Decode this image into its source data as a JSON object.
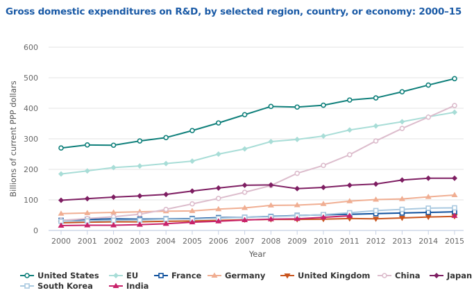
{
  "chart_data": {
    "type": "line",
    "title": "Gross domestic expenditures on R&D, by selected region, country, or economy: 2000–15",
    "xlabel": "Year",
    "ylabel": "Billions of current PPP dollars",
    "ylim": [
      0,
      600
    ],
    "yticks": [
      "0",
      "100",
      "200",
      "300",
      "400",
      "500",
      "600"
    ],
    "ytick_values": [
      0,
      100,
      200,
      300,
      400,
      500,
      600
    ],
    "grid": true,
    "legend_position": "bottom",
    "x": [
      "2000",
      "2001",
      "2002",
      "2003",
      "2004",
      "2005",
      "2006",
      "2007",
      "2008",
      "2009",
      "2010",
      "2011",
      "2012",
      "2013",
      "2014",
      "2015"
    ],
    "series": [
      {
        "name": "United States",
        "color": "#0e7f7a",
        "marker": "circle-open",
        "values": [
          270,
          280,
          279,
          293,
          304,
          327,
          352,
          379,
          406,
          404,
          410,
          427,
          434,
          454,
          476,
          497
        ]
      },
      {
        "name": "EU",
        "color": "#a8ddd7",
        "marker": "diamond",
        "values": [
          185,
          195,
          206,
          211,
          219,
          227,
          250,
          267,
          291,
          298,
          309,
          329,
          342,
          356,
          372,
          387
        ]
      },
      {
        "name": "France",
        "color": "#0d4f9c",
        "marker": "square-open",
        "values": [
          33,
          36,
          38,
          37,
          38,
          39,
          42,
          43,
          46,
          49,
          51,
          53,
          55,
          57,
          59,
          61
        ]
      },
      {
        "name": "Germany",
        "color": "#f0ae92",
        "marker": "triangle-up",
        "values": [
          55,
          57,
          59,
          61,
          63,
          64,
          70,
          74,
          82,
          83,
          87,
          96,
          101,
          103,
          110,
          116
        ]
      },
      {
        "name": "United Kingdom",
        "color": "#c9541d",
        "marker": "triangle-down",
        "values": [
          25,
          27,
          28,
          28,
          30,
          31,
          33,
          35,
          36,
          36,
          37,
          39,
          38,
          41,
          44,
          46
        ]
      },
      {
        "name": "China",
        "color": "#dcbccc",
        "marker": "circle-open",
        "values": [
          33,
          39,
          45,
          53,
          69,
          87,
          105,
          125,
          147,
          187,
          213,
          248,
          293,
          334,
          371,
          409
        ]
      },
      {
        "name": "Japan",
        "color": "#7e1e62",
        "marker": "diamond",
        "values": [
          99,
          104,
          109,
          113,
          118,
          129,
          139,
          148,
          149,
          137,
          141,
          148,
          152,
          165,
          171,
          171
        ]
      },
      {
        "name": "South Korea",
        "color": "#a9c9e0",
        "marker": "square-open",
        "values": [
          30,
          31,
          33,
          34,
          37,
          37,
          40,
          43,
          45,
          48,
          52,
          58,
          65,
          69,
          73,
          74
        ]
      },
      {
        "name": "India",
        "color": "#c8226a",
        "marker": "triangle-up",
        "values": [
          16,
          17,
          17,
          19,
          22,
          27,
          30,
          34,
          37,
          38,
          43,
          48,
          null,
          null,
          null,
          48
        ]
      }
    ]
  }
}
